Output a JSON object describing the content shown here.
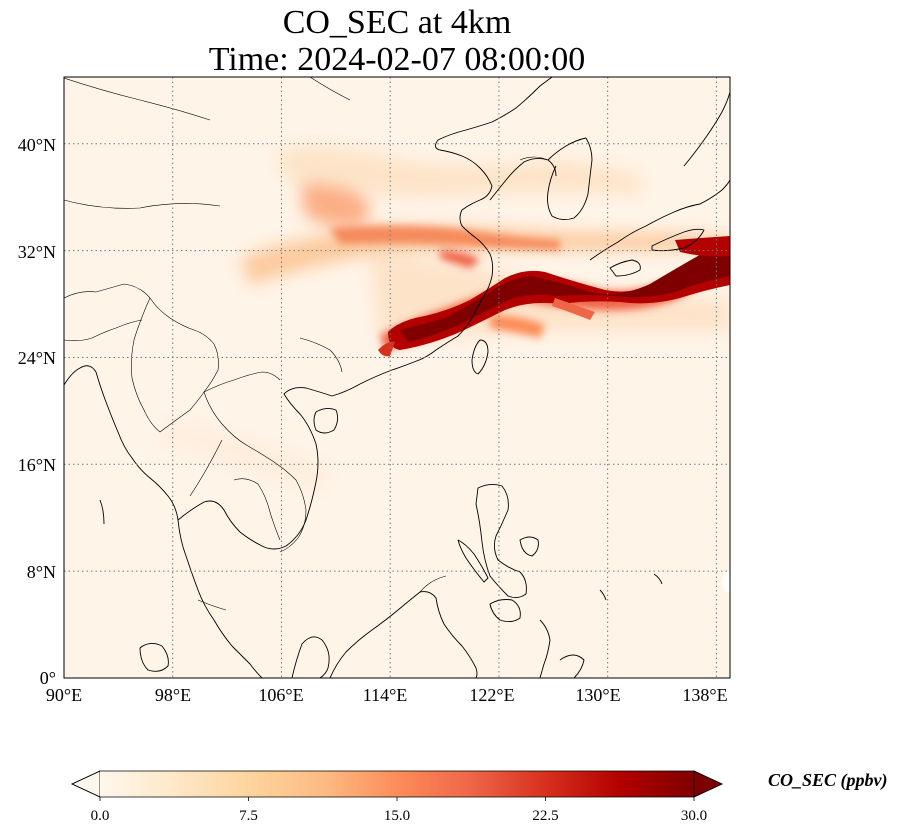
{
  "title": {
    "line1": "CO_SEC at 4km",
    "line2": "Time: 2024-02-07 08:00:00"
  },
  "map": {
    "lon_range": [
      90,
      139
    ],
    "lat_range": [
      0,
      45
    ],
    "lon_ticks": [
      "90°E",
      "98°E",
      "106°E",
      "114°E",
      "122°E",
      "130°E",
      "138°E"
    ],
    "lat_ticks": [
      "0°",
      "8°N",
      "16°N",
      "24°N",
      "32°N",
      "40°N"
    ],
    "gridlines": true,
    "coastlines": true,
    "borders": true
  },
  "colorbar": {
    "label": "CO_SEC (ppbv)",
    "ticks": [
      "0.0",
      "7.5",
      "15.0",
      "22.5",
      "30.0"
    ],
    "range": [
      0,
      30
    ],
    "extend": "both",
    "colormap": "OrRd",
    "colors": [
      "#fff7ec",
      "#fee8c8",
      "#fdd49e",
      "#fdbb84",
      "#fc8d59",
      "#ef6548",
      "#d7301f",
      "#b30000",
      "#7f0000"
    ]
  }
}
